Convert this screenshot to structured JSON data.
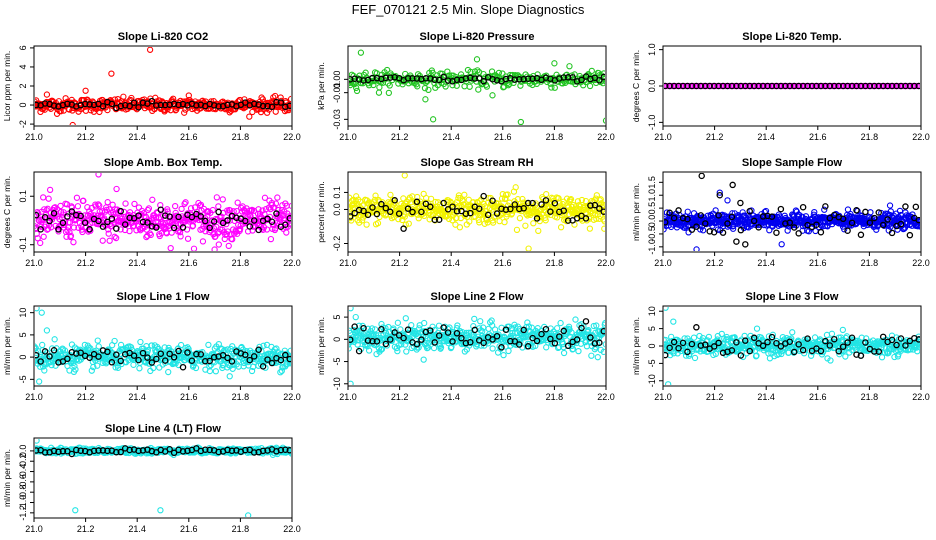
{
  "title": "FEF_070121  2.5 Min. Slope Diagnostics",
  "colors": {
    "overlay": "#000000",
    "axis": "#000000"
  },
  "chart_data": [
    {
      "type": "scatter",
      "title": "Slope Li-820 CO2",
      "ylabel": "Licor ppm per min.",
      "xlim": [
        21.0,
        22.0
      ],
      "ylim": [
        -2.2,
        6.2
      ],
      "xticks": [
        21.0,
        21.2,
        21.4,
        21.6,
        21.8,
        22.0
      ],
      "xtick_labels": [
        "21.0",
        "21.2",
        "21.4",
        "21.6",
        "21.8",
        "22.0"
      ],
      "yticks": [
        -2,
        0,
        2,
        4,
        6
      ],
      "ytick_labels": [
        "-2",
        "0",
        "2",
        "4",
        "6"
      ],
      "color": "#ff0000",
      "center": 0,
      "spread": 0.35,
      "n": 420,
      "outliers": [
        [
          21.45,
          5.8
        ],
        [
          21.3,
          3.3
        ],
        [
          21.15,
          -2.1
        ],
        [
          21.2,
          1.5
        ],
        [
          21.05,
          1.1
        ],
        [
          21.6,
          1.0
        ]
      ],
      "black_spread": 0.15
    },
    {
      "type": "scatter",
      "title": "Slope Li-820 Pressure",
      "ylabel": "kPa per min.",
      "xlim": [
        21.0,
        22.0
      ],
      "ylim": [
        -0.035,
        0.025
      ],
      "xticks": [
        21.0,
        21.2,
        21.4,
        21.6,
        21.8,
        22.0
      ],
      "xtick_labels": [
        "21.0",
        "21.2",
        "21.4",
        "21.6",
        "21.8",
        "22.0"
      ],
      "yticks": [
        -0.03,
        -0.01,
        0.0
      ],
      "ytick_labels": [
        "-0.03",
        "-0.01",
        "0.00"
      ],
      "color": "#22c422",
      "center": 0.0,
      "spread": 0.003,
      "n": 300,
      "outliers": [
        [
          21.33,
          -0.03
        ],
        [
          21.67,
          -0.032
        ],
        [
          22.0,
          -0.031
        ],
        [
          21.05,
          0.02
        ],
        [
          21.12,
          -0.01
        ],
        [
          21.3,
          -0.015
        ],
        [
          21.5,
          0.015
        ],
        [
          21.56,
          -0.012
        ],
        [
          21.8,
          0.012
        ]
      ],
      "black_spread": 0.001
    },
    {
      "type": "scatter",
      "title": "Slope Li-820 Temp.",
      "ylabel": "degrees C per min.",
      "xlim": [
        21.0,
        22.0
      ],
      "ylim": [
        -1.1,
        1.1
      ],
      "xticks": [
        21.0,
        21.2,
        21.4,
        21.6,
        21.8,
        22.0
      ],
      "xtick_labels": [
        "21.0",
        "21.2",
        "21.4",
        "21.6",
        "21.8",
        "22.0"
      ],
      "yticks": [
        -1.0,
        0.0,
        1.0
      ],
      "ytick_labels": [
        "-1.0",
        "0.0",
        "1.0"
      ],
      "color": "#ff00ff",
      "center": 0,
      "spread": 0.0,
      "n": 150,
      "outliers": [],
      "black_spread": 0.0
    },
    {
      "type": "scatter",
      "title": "Slope Amb. Box Temp.",
      "ylabel": "degrees C per min.",
      "xlim": [
        21.0,
        22.0
      ],
      "ylim": [
        -0.13,
        0.2
      ],
      "xticks": [
        21.0,
        21.2,
        21.4,
        21.6,
        21.8,
        22.0
      ],
      "xtick_labels": [
        "21.0",
        "21.2",
        "21.4",
        "21.6",
        "21.8",
        "22.0"
      ],
      "yticks": [
        -0.1,
        0.1
      ],
      "ytick_labels": [
        "-0.1",
        "0.1"
      ],
      "color": "#ff00ff",
      "center": 0,
      "spread": 0.04,
      "n": 520,
      "outliers": [
        [
          21.25,
          0.19
        ],
        [
          21.32,
          0.13
        ],
        [
          21.7,
          -0.12
        ]
      ],
      "black_spread": 0.02
    },
    {
      "type": "scatter",
      "title": "Slope Gas Stream RH",
      "ylabel": "percent per min.",
      "xlim": [
        21.0,
        22.0
      ],
      "ylim": [
        -0.25,
        0.22
      ],
      "xticks": [
        21.0,
        21.2,
        21.4,
        21.6,
        21.8,
        22.0
      ],
      "xtick_labels": [
        "21.0",
        "21.2",
        "21.4",
        "21.6",
        "21.8",
        "22.0"
      ],
      "yticks": [
        -0.2,
        0.0,
        0.1
      ],
      "ytick_labels": [
        "-0.2",
        "0.0",
        "0.1"
      ],
      "color": "#f2f200",
      "center": 0,
      "spread": 0.04,
      "n": 520,
      "outliers": [
        [
          21.22,
          0.2
        ],
        [
          21.7,
          -0.23
        ],
        [
          21.65,
          0.13
        ],
        [
          21.6,
          0.09
        ]
      ],
      "black_spread": 0.03
    },
    {
      "type": "scatter",
      "title": "Slope Sample Flow",
      "ylabel": "ml/min per min.",
      "xlim": [
        21.0,
        22.0
      ],
      "ylim": [
        -1.2,
        1.9
      ],
      "xticks": [
        21.0,
        21.2,
        21.4,
        21.6,
        21.8,
        22.0
      ],
      "xtick_labels": [
        "21.0",
        "21.2",
        "21.4",
        "21.6",
        "21.8",
        "22.0"
      ],
      "yticks": [
        -1.0,
        -0.5,
        0.0,
        0.5,
        1.0,
        1.5
      ],
      "ytick_labels": [
        "-1.0",
        "-0.5",
        "0.0",
        "0.5",
        "1.0",
        "1.5"
      ],
      "color": "#0000ee",
      "center": 0,
      "spread": 0.15,
      "n": 620,
      "outliers": [
        [
          21.13,
          -1.1
        ],
        [
          21.46,
          -0.9
        ],
        [
          21.22,
          1.1
        ],
        [
          21.25,
          0.8
        ],
        [
          21.88,
          0.6
        ]
      ],
      "black_spread": 0.3,
      "black_outliers": [
        [
          21.15,
          1.75
        ],
        [
          21.27,
          1.4
        ],
        [
          21.22,
          1.0
        ],
        [
          21.3,
          0.7
        ],
        [
          21.98,
          0.55
        ]
      ]
    },
    {
      "type": "scatter",
      "title": "Slope Line 1 Flow",
      "ylabel": "ml/min per min.",
      "xlim": [
        21.0,
        22.0
      ],
      "ylim": [
        -6.5,
        11.5
      ],
      "xticks": [
        21.0,
        21.2,
        21.4,
        21.6,
        21.8,
        22.0
      ],
      "xtick_labels": [
        "21.0",
        "21.2",
        "21.4",
        "21.6",
        "21.8",
        "22.0"
      ],
      "yticks": [
        -5,
        0,
        5,
        10
      ],
      "ytick_labels": [
        "-5",
        "0",
        "5",
        "10"
      ],
      "color": "#22e5e5",
      "center": 0,
      "spread": 1.3,
      "n": 520,
      "outliers": [
        [
          21.01,
          11
        ],
        [
          21.03,
          10
        ],
        [
          21.05,
          6
        ],
        [
          21.02,
          -5.5
        ],
        [
          21.04,
          -3
        ],
        [
          21.08,
          4
        ]
      ],
      "black_spread": 1.2
    },
    {
      "type": "scatter",
      "title": "Slope Line 2 Flow",
      "ylabel": "ml/min per min.",
      "xlim": [
        21.0,
        22.0
      ],
      "ylim": [
        -10.5,
        7.5
      ],
      "xticks": [
        21.0,
        21.2,
        21.4,
        21.6,
        21.8,
        22.0
      ],
      "xtick_labels": [
        "21.0",
        "21.2",
        "21.4",
        "21.6",
        "21.8",
        "22.0"
      ],
      "yticks": [
        -10,
        -5,
        0,
        5
      ],
      "ytick_labels": [
        "-10",
        "-5",
        "0",
        "5"
      ],
      "color": "#22e5e5",
      "center": 0.5,
      "spread": 1.5,
      "n": 520,
      "outliers": [
        [
          21.01,
          7
        ],
        [
          21.01,
          -10
        ],
        [
          21.03,
          5
        ]
      ],
      "black_spread": 1.3
    },
    {
      "type": "scatter",
      "title": "Slope Line 3 Flow",
      "ylabel": "ml/min per min.",
      "xlim": [
        21.0,
        22.0
      ],
      "ylim": [
        -11.5,
        11.5
      ],
      "xticks": [
        21.0,
        21.2,
        21.4,
        21.6,
        21.8,
        22.0
      ],
      "xtick_labels": [
        "21.0",
        "21.2",
        "21.4",
        "21.6",
        "21.8",
        "22.0"
      ],
      "yticks": [
        -10,
        -5,
        0,
        5,
        10
      ],
      "ytick_labels": [
        "-10",
        "-5",
        "0",
        "5",
        "10"
      ],
      "color": "#22e5e5",
      "center": 0,
      "spread": 1.4,
      "n": 520,
      "outliers": [
        [
          21.01,
          11
        ],
        [
          21.02,
          -11
        ],
        [
          21.04,
          7
        ]
      ],
      "black_spread": 1.5
    },
    {
      "type": "scatter",
      "title": "Slope Line 4 (LT) Flow",
      "ylabel": "ml/min per min.",
      "xlim": [
        21.0,
        22.0
      ],
      "ylim": [
        -1.3,
        0.25
      ],
      "xticks": [
        21.0,
        21.2,
        21.4,
        21.6,
        21.8,
        22.0
      ],
      "xtick_labels": [
        "21.0",
        "21.2",
        "21.4",
        "21.6",
        "21.8",
        "22.0"
      ],
      "yticks": [
        -1.2,
        -1.0,
        -0.8,
        -0.6,
        -0.4,
        -0.2,
        0.0
      ],
      "ytick_labels": [
        "-1.2",
        "-1.0",
        "-0.8",
        "-0.6",
        "-0.4",
        "-0.2",
        "0.0"
      ],
      "color": "#22e5e5",
      "center": 0,
      "spread": 0.025,
      "n": 520,
      "outliers": [
        [
          21.16,
          -1.15
        ],
        [
          21.49,
          -1.15
        ],
        [
          21.83,
          -1.25
        ],
        [
          21.01,
          0.2
        ]
      ],
      "black_spread": 0.02
    }
  ]
}
